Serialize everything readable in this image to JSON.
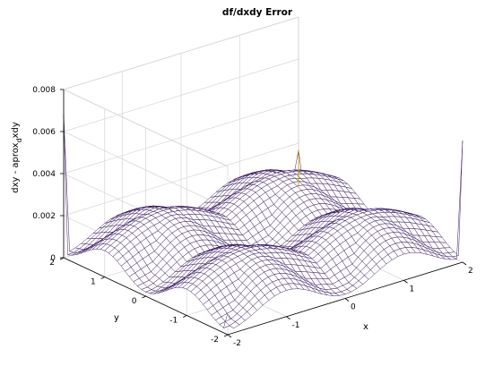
{
  "chart_data": {
    "type": "surface",
    "title": "df/dxdy Error",
    "xlabel": "x",
    "ylabel": "y",
    "zlabel": "dxy - aprox_dxdy",
    "zlabel_main": "dxy - aprox",
    "zlabel_sub": "d",
    "zlabel_tail": "xdy",
    "x_ticks": [
      "-2",
      "-1",
      "0",
      "1",
      "2"
    ],
    "y_ticks": [
      "-2",
      "-1",
      "0",
      "1",
      "2"
    ],
    "z_ticks": [
      "0",
      "0.002",
      "0.004",
      "0.006",
      "0.008"
    ],
    "xlim": [
      -2,
      2
    ],
    "ylim": [
      -2,
      2
    ],
    "zlim": [
      0,
      0.008
    ],
    "grid": true,
    "colors": {
      "mesh_edge": "#2a0a55",
      "mesh_face": "#ffffff",
      "edge_highlight": "#c8a000"
    },
    "surface_description": {
      "interior_peak_error": 0.0023,
      "edge_error_typical": 0.0002,
      "corner_spike_error": 0.0068,
      "grid_resolution": 41
    }
  }
}
